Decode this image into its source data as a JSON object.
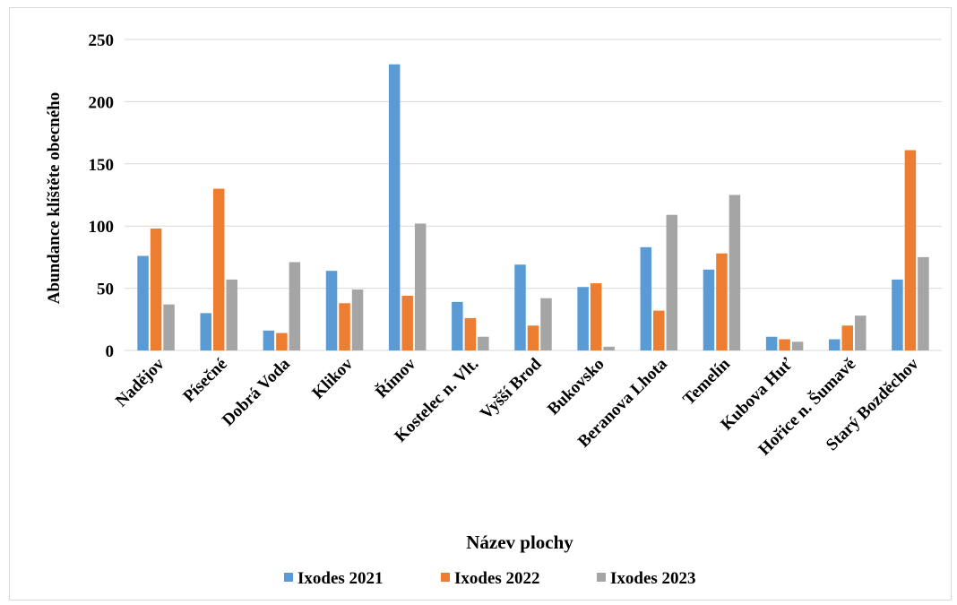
{
  "chart_data": {
    "type": "bar",
    "title": "",
    "xlabel": "Název plochy",
    "ylabel": "Abundance klíštěte obecného",
    "ylim": [
      0,
      250
    ],
    "yticks": [
      0,
      50,
      100,
      150,
      200,
      250
    ],
    "grid": true,
    "legend_position": "bottom",
    "categories": [
      "Nadějov",
      "Písečné",
      "Dobrá Voda",
      "Klikov",
      "Římov",
      "Kostelec n. Vlt.",
      "Vyšší Brod",
      "Bukovsko",
      "Beranova Lhota",
      "Temelín",
      "Kubova Huť",
      "Hořice n. Šumavě",
      "Starý Bozděchov"
    ],
    "series": [
      {
        "name": "Ixodes 2021",
        "color": "#5b9bd5",
        "values": [
          76,
          30,
          16,
          64,
          230,
          39,
          69,
          51,
          83,
          65,
          11,
          9,
          57
        ]
      },
      {
        "name": "Ixodes 2022",
        "color": "#ed7d31",
        "values": [
          98,
          130,
          14,
          38,
          44,
          26,
          20,
          54,
          32,
          78,
          9,
          20,
          161
        ]
      },
      {
        "name": "Ixodes 2023",
        "color": "#a5a5a5",
        "values": [
          37,
          57,
          71,
          49,
          102,
          11,
          42,
          3,
          109,
          125,
          7,
          28,
          75
        ]
      }
    ]
  }
}
